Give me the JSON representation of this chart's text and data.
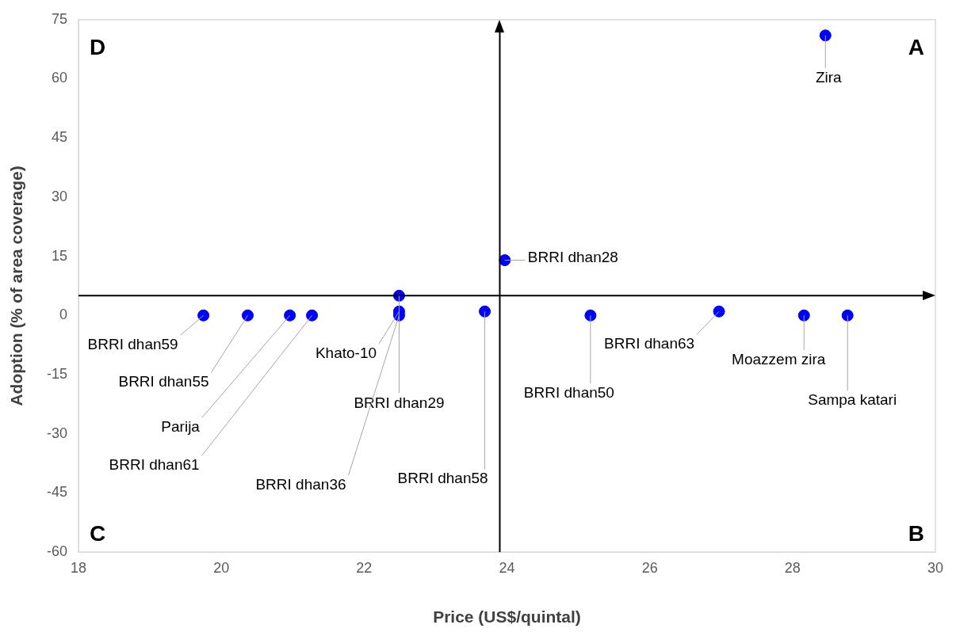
{
  "chart_data": {
    "type": "scatter",
    "xlabel": "Price (US$/quintal)",
    "ylabel": "Adoption (% of area coverage)",
    "x": [
      19.75,
      20.37,
      20.96,
      21.27,
      22.49,
      22.49,
      22.49,
      23.69,
      23.97,
      25.17,
      26.97,
      28.16,
      28.77,
      28.46
    ],
    "series": [
      {
        "color": "#0000ff",
        "values": [
          0,
          0,
          0,
          0,
          1,
          5,
          0,
          1,
          14,
          0,
          1,
          0,
          0,
          71
        ]
      }
    ],
    "marker": "circle",
    "grid": false,
    "legend": false,
    "xlim": [
      18,
      30
    ],
    "xticks": [
      18,
      20,
      22,
      24,
      26,
      28,
      30
    ],
    "ylim": [
      -60,
      75
    ],
    "yticks": [
      -60,
      -45,
      -30,
      -15,
      0,
      15,
      30,
      45,
      60,
      75
    ],
    "ref_lines": [
      {
        "axis": "x",
        "value": 23.9,
        "color": "#000000"
      },
      {
        "axis": "y",
        "value": 5,
        "color": "#000000"
      }
    ],
    "annotations": [
      "A",
      "B",
      "C",
      "D",
      {
        "text": "BRRI dhan59",
        "x": 19.75,
        "y": 0
      },
      {
        "text": "BRRI dhan55",
        "x": 20.37,
        "y": 0
      },
      {
        "text": "Parija",
        "x": 20.96,
        "y": 0
      },
      {
        "text": "BRRI dhan61",
        "x": 21.27,
        "y": 0
      },
      {
        "text": "Khato-10",
        "x": 22.49,
        "y": 1
      },
      {
        "text": "BRRI dhan29",
        "x": 22.49,
        "y": 5
      },
      {
        "text": "BRRI dhan36",
        "x": 22.49,
        "y": 0
      },
      {
        "text": "BRRI dhan58",
        "x": 23.69,
        "y": 1
      },
      {
        "text": "BRRI dhan28",
        "x": 23.97,
        "y": 14
      },
      {
        "text": "BRRI dhan50",
        "x": 25.17,
        "y": 0
      },
      {
        "text": "BRRI dhan63",
        "x": 26.97,
        "y": 1
      },
      {
        "text": "Moazzem zira",
        "x": 28.16,
        "y": 0
      },
      {
        "text": "Sampa katari",
        "x": 28.77,
        "y": 0
      },
      {
        "text": "Zira",
        "x": 28.46,
        "y": 71
      }
    ]
  }
}
